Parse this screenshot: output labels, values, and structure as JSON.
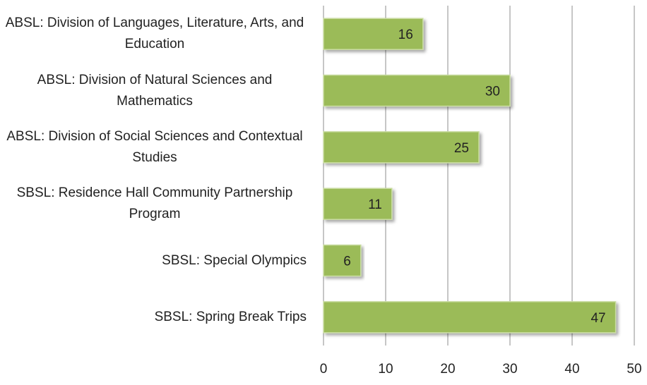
{
  "chart_data": {
    "type": "bar",
    "orientation": "horizontal",
    "categories": [
      "ABSL: Division of Languages, Literature, Arts, and Education",
      "ABSL: Division of Natural Sciences and Mathematics",
      "ABSL: Division of Social Sciences and Contextual Studies",
      "SBSL: Residence Hall Community Partnership Program",
      "SBSL: Special Olympics",
      "SBSL: Spring Break Trips"
    ],
    "values": [
      16,
      30,
      25,
      11,
      6,
      47
    ],
    "color": "#9bbb59",
    "xlim": [
      0,
      50
    ],
    "xticks": [
      0,
      10,
      20,
      30,
      40,
      50
    ],
    "grid": true
  }
}
